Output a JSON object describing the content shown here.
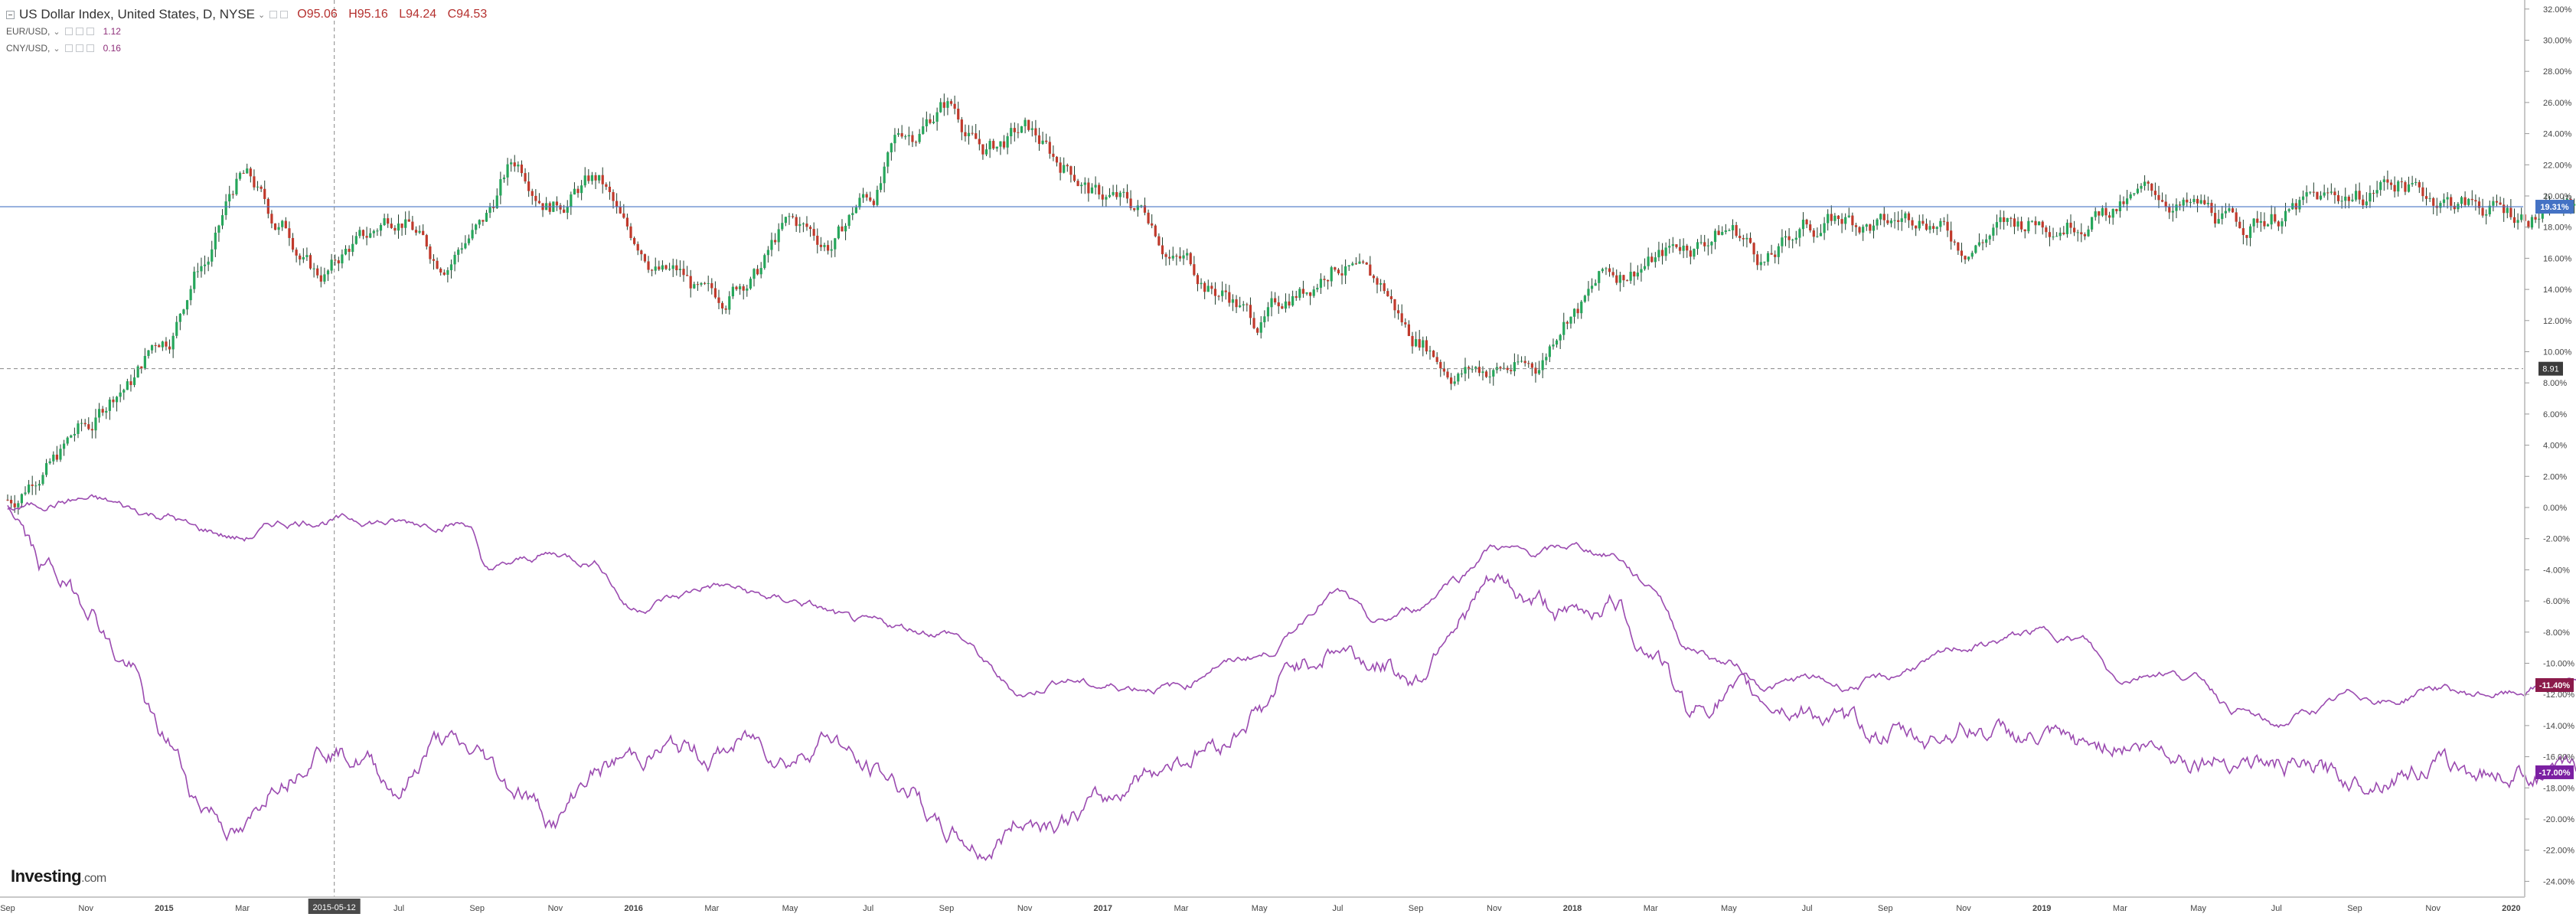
{
  "legend": {
    "main_title": "US Dollar Index, United States, D, NYSE",
    "main_caret": "⌄",
    "ohlc": {
      "open": "O95.06",
      "high": "H95.16",
      "low": "L94.24",
      "close": "C94.53"
    },
    "series2_title": "EUR/USD,",
    "series2_value": "1.12",
    "series3_title": "CNY/USD,",
    "series3_value": "0.16"
  },
  "brand": {
    "name": "Investing",
    "suffix": ".com"
  },
  "colors": {
    "up": "#26a65b",
    "down": "#c0392b",
    "cny_line": "#9b4bb0",
    "eur_line": "#9b4bb0",
    "last_price": "#4472c4",
    "badge_red": "#8b1a4a",
    "badge_purple": "#7b1fa2"
  },
  "chart_data": {
    "type": "line",
    "yaxis": {
      "unit": "%",
      "min": -25,
      "max": 33,
      "ticks": [
        "32.00%",
        "30.00%",
        "28.00%",
        "26.00%",
        "24.00%",
        "22.00%",
        "20.00%",
        "18.00%",
        "16.00%",
        "14.00%",
        "12.00%",
        "10.00%",
        "8.00%",
        "6.00%",
        "4.00%",
        "2.00%",
        "0.00%",
        "-2.00%",
        "-4.00%",
        "-6.00%",
        "-8.00%",
        "-10.00%",
        "-12.00%",
        "-14.00%",
        "-16.00%",
        "-18.00%",
        "-20.00%",
        "-22.00%",
        "-24.00%"
      ],
      "tick_values": [
        32,
        30,
        28,
        26,
        24,
        22,
        20,
        18,
        16,
        14,
        12,
        10,
        8,
        6,
        4,
        2,
        0,
        -2,
        -4,
        -6,
        -8,
        -10,
        -12,
        -14,
        -16,
        -18,
        -20,
        -22,
        -24
      ]
    },
    "xaxis": {
      "min_month": 0,
      "max_month": 66.5,
      "labels": [
        "Sep",
        "Nov",
        "2015",
        "Mar",
        "Jul",
        "Sep",
        "Nov",
        "2016",
        "Mar",
        "May",
        "Jul",
        "Sep",
        "Nov",
        "2017",
        "Mar",
        "May",
        "Jul",
        "Sep",
        "Nov",
        "2018",
        "Mar",
        "May",
        "Jul",
        "Sep",
        "Nov",
        "2019",
        "Mar",
        "May",
        "Jul",
        "Sep",
        "Nov",
        "2020"
      ],
      "label_months": [
        0,
        2,
        4,
        6,
        10,
        12,
        14,
        16,
        18,
        20,
        22,
        24,
        26,
        28,
        30,
        32,
        34,
        36,
        38,
        40,
        42,
        44,
        46,
        48,
        50,
        52,
        54,
        56,
        58,
        60,
        62,
        64
      ],
      "crosshair_label": "2015-05-12",
      "crosshair_month": 8.35
    },
    "crosshair_y_value": 8.91,
    "crosshair_y_label": "8.91",
    "last_value_line": 19.31,
    "badges": [
      {
        "value": 19.31,
        "label": "19.31%"
      },
      {
        "value": -11.4,
        "label": "-11.40%"
      },
      {
        "value": -17.0,
        "label": "-17.00%"
      }
    ],
    "series": [
      {
        "kind": "candles",
        "x": [
          0,
          1,
          2,
          3,
          4,
          5,
          6,
          7,
          8,
          9,
          10,
          11,
          12,
          13,
          14,
          15,
          16,
          17,
          18,
          19,
          20,
          21,
          22,
          23,
          24,
          25,
          26,
          27,
          28,
          29,
          30,
          31,
          32,
          33,
          34,
          35,
          36,
          37,
          38,
          39,
          40,
          41,
          42,
          43,
          44,
          45,
          46,
          47,
          48,
          49,
          50,
          51,
          52,
          53,
          54,
          55,
          56,
          57,
          58,
          59,
          60,
          61,
          62,
          63,
          64,
          65,
          66
        ],
        "values": [
          0.5,
          3,
          5,
          8,
          11,
          16,
          21,
          18,
          15,
          17,
          19,
          16,
          18,
          22,
          20,
          21,
          17,
          15,
          13,
          15,
          18,
          17,
          20,
          24,
          26,
          23,
          24,
          22,
          20,
          19,
          16,
          14,
          12,
          14,
          16,
          14,
          11,
          9,
          9,
          9,
          13,
          15,
          16,
          17,
          18,
          16,
          18,
          18.5,
          18,
          19,
          17,
          18,
          18.5,
          19,
          19.5,
          20,
          19,
          18,
          19,
          19.5,
          20,
          21,
          20,
          19.5,
          19,
          19,
          19.31
        ]
      },
      {
        "kind": "line",
        "x": [
          0,
          2,
          4,
          5,
          6,
          7,
          8,
          9,
          10,
          11,
          11.8,
          12.2,
          14,
          15,
          16,
          17,
          18,
          20,
          22,
          24,
          26,
          27,
          28,
          30,
          31,
          32,
          34,
          35,
          36,
          37,
          38,
          39,
          40,
          41,
          42,
          43,
          44,
          45,
          46,
          47,
          48,
          49,
          50,
          52,
          53,
          54,
          55,
          56,
          57,
          58,
          59,
          60,
          61,
          62,
          63,
          64,
          65,
          66
        ],
        "values": [
          0,
          0.5,
          -0.5,
          -1.5,
          -2,
          -1,
          -0.8,
          -0.8,
          -1,
          -1,
          -1,
          -4,
          -3,
          -3.5,
          -6.5,
          -5.8,
          -5,
          -6,
          -7.5,
          -8,
          -12,
          -11,
          -11.5,
          -11.5,
          -10,
          -9.5,
          -5.5,
          -7.5,
          -6.5,
          -4.5,
          -2.5,
          -3,
          -2.5,
          -3,
          -5,
          -9,
          -10,
          -11.5,
          -11,
          -11.5,
          -11,
          -10,
          -9,
          -8,
          -8.5,
          -11,
          -10.5,
          -11,
          -13,
          -14,
          -13,
          -12,
          -12.5,
          -11.5,
          -12,
          -12,
          -11.4,
          -11.4
        ]
      },
      {
        "kind": "line",
        "x": [
          0,
          1,
          2,
          3,
          4,
          5,
          6,
          7,
          8,
          9,
          10,
          11,
          12,
          13,
          14,
          15,
          16,
          17,
          18,
          19,
          20,
          21,
          22,
          23,
          24,
          25,
          26,
          27,
          28,
          29,
          30,
          31,
          32,
          33,
          34,
          35,
          36,
          37,
          38,
          39,
          40,
          41,
          42,
          43,
          44,
          45,
          46,
          47,
          48,
          49,
          50,
          51,
          52,
          53,
          54,
          55,
          56,
          57,
          58,
          59,
          60,
          61,
          62,
          63,
          64,
          65,
          66
        ],
        "values": [
          0,
          -4,
          -6,
          -10,
          -15,
          -19,
          -21,
          -17,
          -15,
          -16,
          -18,
          -15,
          -16,
          -18,
          -20,
          -17,
          -16,
          -15.5,
          -16,
          -15,
          -16,
          -14.5,
          -17,
          -18,
          -21,
          -22,
          -20,
          -20,
          -19,
          -17,
          -16,
          -15,
          -13,
          -10,
          -9,
          -10,
          -11,
          -7,
          -5,
          -6,
          -7,
          -6,
          -9,
          -13,
          -12,
          -12.5,
          -13,
          -14,
          -14.5,
          -15,
          -14,
          -14.5,
          -15,
          -15.5,
          -15,
          -15.5,
          -16,
          -16,
          -16.5,
          -17,
          -17.5,
          -17,
          -16.5,
          -17,
          -17,
          -17,
          -17
        ]
      }
    ]
  }
}
